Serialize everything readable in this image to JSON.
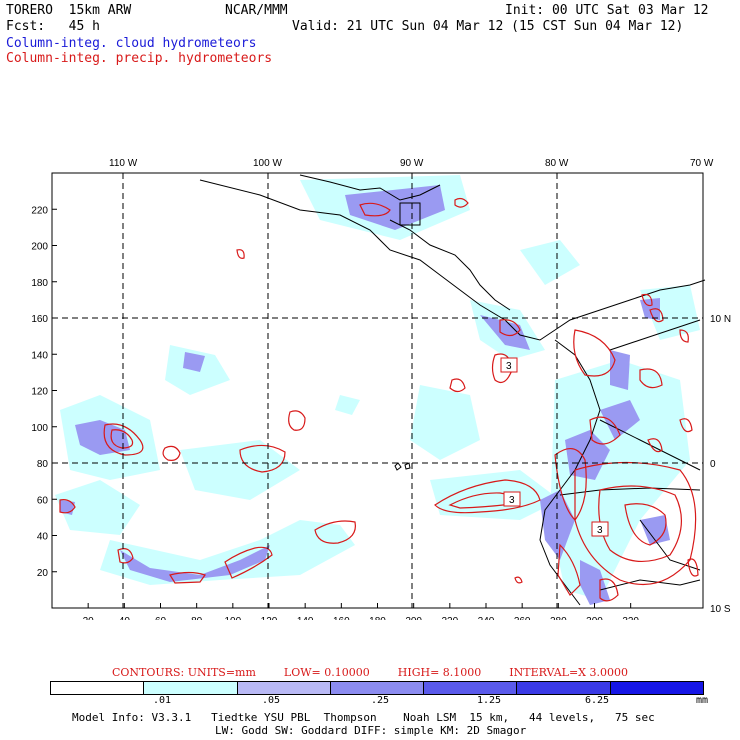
{
  "header": {
    "model": "TORERO  15km ARW",
    "org": "NCAR/MMM",
    "init": "Init: 00 UTC Sat 03 Mar 12",
    "fcst": "Fcst:   45 h",
    "valid": "Valid: 21 UTC Sun 04 Mar 12 (15 CST Sun 04 Mar 12)",
    "field1": "Column-integ. cloud hydrometeors",
    "field2": "Column-integ. precip. hydrometeors"
  },
  "colors": {
    "field1": "#1a1ad8",
    "field2": "#d81a1a",
    "contour": "#d81a1a"
  },
  "axes": {
    "top_lon": [
      "110 W",
      "100 W",
      "90 W",
      "80 W",
      "70 W"
    ],
    "right_lat": [
      "10 N",
      "0",
      "10 S"
    ],
    "y_ticks": [
      "20",
      "40",
      "60",
      "80",
      "100",
      "120",
      "140",
      "160",
      "180",
      "200",
      "220"
    ],
    "x_ticks": [
      "20",
      "40",
      "60",
      "80",
      "100",
      "120",
      "140",
      "160",
      "180",
      "200",
      "220",
      "240",
      "260",
      "280",
      "300",
      "320"
    ]
  },
  "contour_labels": [
    "3",
    "3",
    "3"
  ],
  "contours": {
    "units": "CONTOURS:  UNITS=mm",
    "low": "LOW= 0.10000",
    "high": "HIGH=  8.1000",
    "interval": "INTERVAL=X  3.0000"
  },
  "legend": {
    "colors": [
      "#ffffff",
      "#ccffff",
      "#b9b9f5",
      "#8c8cf0",
      "#5a5aeb",
      "#3a3ae6",
      "#1616e6"
    ],
    "labels": [
      ".01",
      ".05",
      ".25",
      "1.25",
      "6.25"
    ],
    "units": "mm"
  },
  "footer": {
    "line1": "Model Info: V3.3.1   Tiedtke YSU PBL  Thompson    Noah LSM  15 km,   44 levels,   75 sec",
    "line2": "LW: Godd SW: Goddard DIFF: simple KM: 2D Smagor"
  }
}
